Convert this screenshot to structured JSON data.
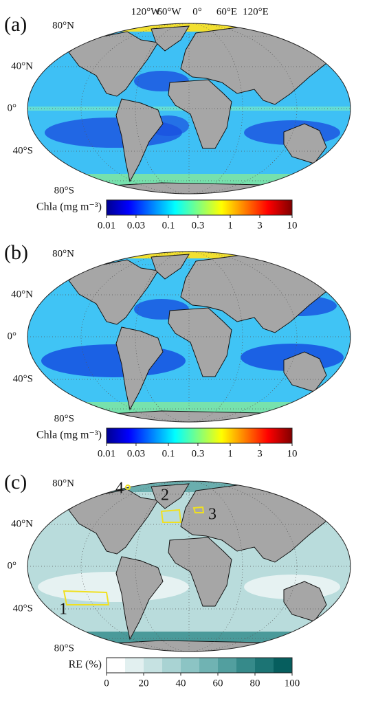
{
  "panels": [
    {
      "label": "(a)",
      "lat_labels": [
        "80°N",
        "40°N",
        "0°",
        "40°S",
        "80°S"
      ],
      "lon_labels": [
        "120°W",
        "60°W",
        "0°",
        "60°E",
        "120°E"
      ],
      "colorbar": {
        "label": "Chla (mg m⁻³)",
        "lim": [
          0.01,
          10
        ],
        "log": true,
        "ticks": [
          0.01,
          0.03,
          0.1,
          0.3,
          1,
          3,
          10
        ]
      }
    },
    {
      "label": "(b)",
      "lat_labels": [
        "80°N",
        "40°N",
        "0°",
        "40°S",
        "80°S"
      ],
      "colorbar": {
        "label": "Chla (mg m⁻³)",
        "lim": [
          0.01,
          10
        ],
        "log": true,
        "ticks": [
          0.01,
          0.03,
          0.1,
          0.3,
          1,
          3,
          10
        ]
      }
    },
    {
      "label": "(c)",
      "lat_labels": [
        "80°N",
        "40°N",
        "0°",
        "40°S",
        "80°S"
      ],
      "colorbar": {
        "label": "RE (%)",
        "lim": [
          0,
          100
        ],
        "log": false,
        "ticks": [
          0,
          20,
          40,
          60,
          80,
          100
        ]
      },
      "regions": [
        "1",
        "2",
        "3",
        "4"
      ]
    }
  ]
}
